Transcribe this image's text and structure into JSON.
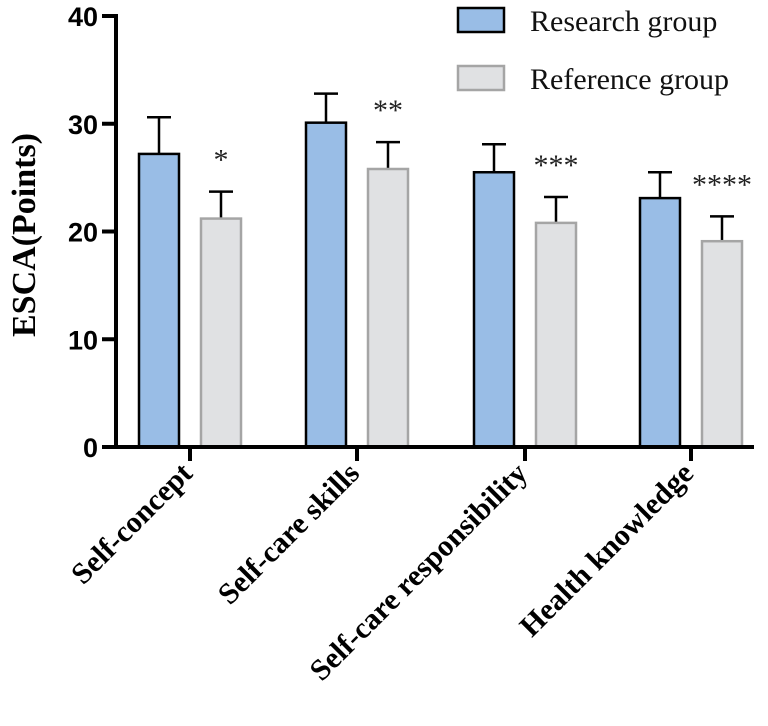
{
  "chart_data": {
    "type": "bar",
    "title": "",
    "xlabel": "",
    "ylabel": "ESCA(Points)",
    "ylim": [
      0,
      40
    ],
    "yticks": [
      "0",
      "10",
      "20",
      "30",
      "40"
    ],
    "categories": [
      "Self-concept",
      "Self-care skills",
      "Self-care responsibility",
      "Health knowledge"
    ],
    "series": [
      {
        "name": "Research group",
        "color": "#99bde6",
        "edge": "#000000",
        "values": [
          27.2,
          30.1,
          25.5,
          23.1
        ],
        "errors": [
          3.4,
          2.7,
          2.6,
          2.4
        ]
      },
      {
        "name": "Reference group",
        "color": "#e0e1e3",
        "edge": "#a5a5a5",
        "values": [
          21.2,
          25.8,
          20.8,
          19.1
        ],
        "errors": [
          2.5,
          2.5,
          2.4,
          2.3
        ]
      }
    ],
    "significance": [
      "*",
      "**",
      "***",
      "****"
    ],
    "legend_position": "top-right"
  }
}
